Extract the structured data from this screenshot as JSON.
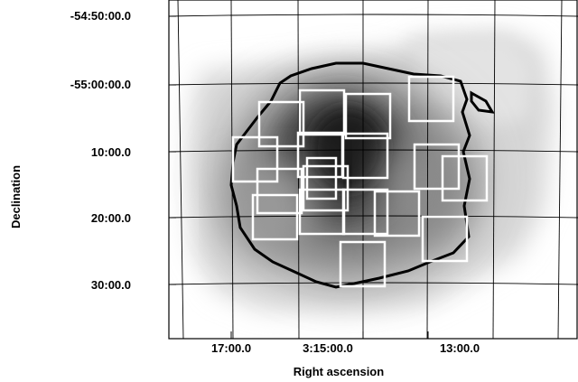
{
  "figure": {
    "xlabel": "Right ascension",
    "ylabel": "Declination",
    "x_tick_labels": [
      "17:00.0",
      "3:15:00.0",
      "13:00.0"
    ],
    "y_tick_labels": [
      "-54:50:00.0",
      "-55:00:00.0",
      "10:00.0",
      "20:00.0",
      "30:00.0"
    ],
    "colors": {
      "footprint": "#ffffff",
      "contour": "#000000",
      "background": "#ffffff"
    },
    "footprint_count": 18,
    "grid": true,
    "colormap": "inverted-grayscale"
  }
}
